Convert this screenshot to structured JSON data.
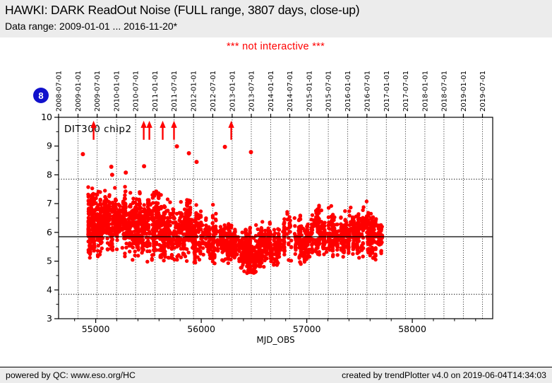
{
  "header": {
    "title": "HAWKI: DARK ReadOut Noise (FULL range, 3807 days, close-up)",
    "subtitle": "Data range: 2009-01-01 ... 2016-11-20*"
  },
  "warning_text": "*** not interactive ***",
  "badge": {
    "label": "8",
    "color": "#1111cc"
  },
  "footer": {
    "left": "powered by QC: www.eso.org/HC",
    "right": "created by trendPlotter v4.0 on 2019-06-04T14:34:03"
  },
  "colors": {
    "marker": "#ff0000",
    "warning": "#ff0000",
    "band_background": "#ececec",
    "axis": "#000000"
  },
  "chart_data": {
    "type": "scatter",
    "xlabel": "MJD_OBS",
    "ylabel": "",
    "legend_label": "DIT300 chip2",
    "xlim": [
      54648,
      58762
    ],
    "ylim": [
      3,
      10
    ],
    "x_ticks": [
      55000,
      56000,
      57000,
      58000
    ],
    "x_minor_step": 200,
    "y_ticks": [
      3,
      4,
      5,
      6,
      7,
      8,
      9,
      10
    ],
    "y_minor_ticks": [
      3.5,
      4.5,
      5.5,
      6.5,
      7.5,
      8.5,
      9.5
    ],
    "grid": "vertical-dotted-at-date-ticks",
    "legend_position": "top-left-inside",
    "date_ticks": [
      {
        "label": "2008-07-01",
        "mjd": 54648
      },
      {
        "label": "2009-01-01",
        "mjd": 54832
      },
      {
        "label": "2009-07-01",
        "mjd": 55013
      },
      {
        "label": "2010-01-01",
        "mjd": 55197
      },
      {
        "label": "2010-07-01",
        "mjd": 55378
      },
      {
        "label": "2011-01-01",
        "mjd": 55562
      },
      {
        "label": "2011-07-01",
        "mjd": 55743
      },
      {
        "label": "2012-01-01",
        "mjd": 55927
      },
      {
        "label": "2012-07-01",
        "mjd": 56109
      },
      {
        "label": "2013-01-01",
        "mjd": 56293
      },
      {
        "label": "2013-07-01",
        "mjd": 56474
      },
      {
        "label": "2014-01-01",
        "mjd": 56658
      },
      {
        "label": "2014-07-01",
        "mjd": 56839
      },
      {
        "label": "2015-01-01",
        "mjd": 57023
      },
      {
        "label": "2015-07-01",
        "mjd": 57204
      },
      {
        "label": "2016-01-01",
        "mjd": 57388
      },
      {
        "label": "2016-07-01",
        "mjd": 57570
      },
      {
        "label": "2017-01-01",
        "mjd": 57754
      },
      {
        "label": "2017-07-01",
        "mjd": 57935
      },
      {
        "label": "2018-01-01",
        "mjd": 58119
      },
      {
        "label": "2018-07-01",
        "mjd": 58300
      },
      {
        "label": "2019-01-01",
        "mjd": 58484
      },
      {
        "label": "2019-07-01",
        "mjd": 58665
      }
    ],
    "reference_lines": [
      {
        "name": "median-line",
        "style": "solid",
        "value": 5.85
      },
      {
        "name": "upper-threshold-line",
        "style": "dotted",
        "value": 7.85
      },
      {
        "name": "lower-threshold-line",
        "style": "dotted",
        "value": 3.85
      }
    ],
    "out_of_range_arrows_mjd": [
      54980,
      55455,
      55508,
      55635,
      55742,
      56284
    ],
    "arrow_span": [
      9.22,
      9.88
    ],
    "outliers": [
      [
        54878,
        8.72
      ],
      [
        55148,
        8.28
      ],
      [
        55156,
        8.0
      ],
      [
        55285,
        8.08
      ],
      [
        55458,
        8.3
      ],
      [
        55769,
        8.99
      ],
      [
        55883,
        8.75
      ],
      [
        55956,
        8.45
      ],
      [
        56224,
        8.97
      ],
      [
        56471,
        8.79
      ]
    ],
    "clusters": [
      [
        54930,
        55060,
        6.25,
        0.55,
        280,
        5.1,
        7.6
      ],
      [
        55060,
        55200,
        6.45,
        0.5,
        220,
        5.3,
        7.6
      ],
      [
        55200,
        55420,
        6.3,
        0.55,
        300,
        5.0,
        7.6
      ],
      [
        55420,
        55650,
        6.2,
        0.55,
        320,
        4.95,
        7.5
      ],
      [
        55650,
        55900,
        6.05,
        0.5,
        300,
        5.0,
        7.4
      ],
      [
        55900,
        56150,
        5.8,
        0.42,
        260,
        4.9,
        7.0
      ],
      [
        56150,
        56360,
        5.65,
        0.35,
        220,
        4.9,
        6.7
      ],
      [
        56360,
        56560,
        5.4,
        0.4,
        260,
        4.5,
        6.4
      ],
      [
        56400,
        56520,
        4.9,
        0.22,
        60,
        4.45,
        5.35
      ],
      [
        56560,
        56780,
        5.6,
        0.35,
        220,
        4.8,
        6.6
      ],
      [
        56780,
        57050,
        5.8,
        0.38,
        260,
        4.9,
        6.9
      ],
      [
        57050,
        57300,
        5.95,
        0.38,
        260,
        5.1,
        7.0
      ],
      [
        57300,
        57530,
        5.9,
        0.4,
        240,
        5.0,
        7.0
      ],
      [
        57530,
        57715,
        5.95,
        0.45,
        200,
        5.0,
        7.1
      ]
    ],
    "seed": 7
  }
}
